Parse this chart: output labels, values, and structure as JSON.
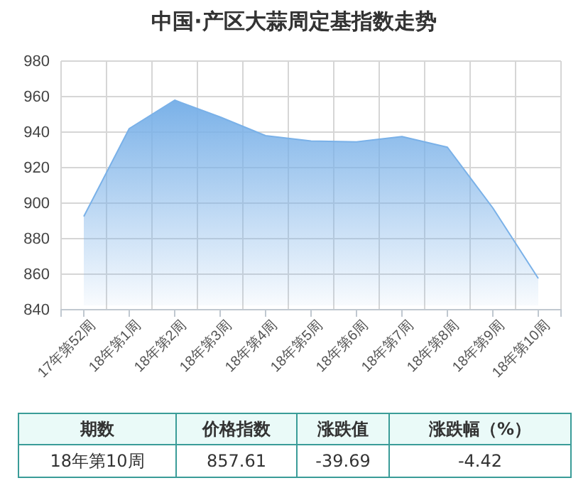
{
  "chart_data": {
    "type": "area",
    "title": "中国·产区大蒜周定基指数走势",
    "categories": [
      "17年第52周",
      "18年第1周",
      "18年第2周",
      "18年第3周",
      "18年第4周",
      "18年第5周",
      "18年第6周",
      "18年第7周",
      "18年第8周",
      "18年第9周",
      "18年第10周"
    ],
    "series": [
      {
        "color": "#7ab1e8",
        "values": [
          892.5,
          942,
          958,
          948.5,
          938,
          935,
          934.5,
          937.5,
          931.5,
          897.3,
          857.61
        ]
      }
    ],
    "ylim": [
      840,
      980
    ],
    "yticks": [
      840,
      860,
      880,
      900,
      920,
      940,
      960,
      980
    ],
    "grid": true,
    "annotations": [
      "期数",
      "价格指数",
      "涨跌值",
      "涨跌幅（%）",
      "18年第10周",
      "857.61",
      "-39.69",
      "-4.42"
    ]
  }
}
